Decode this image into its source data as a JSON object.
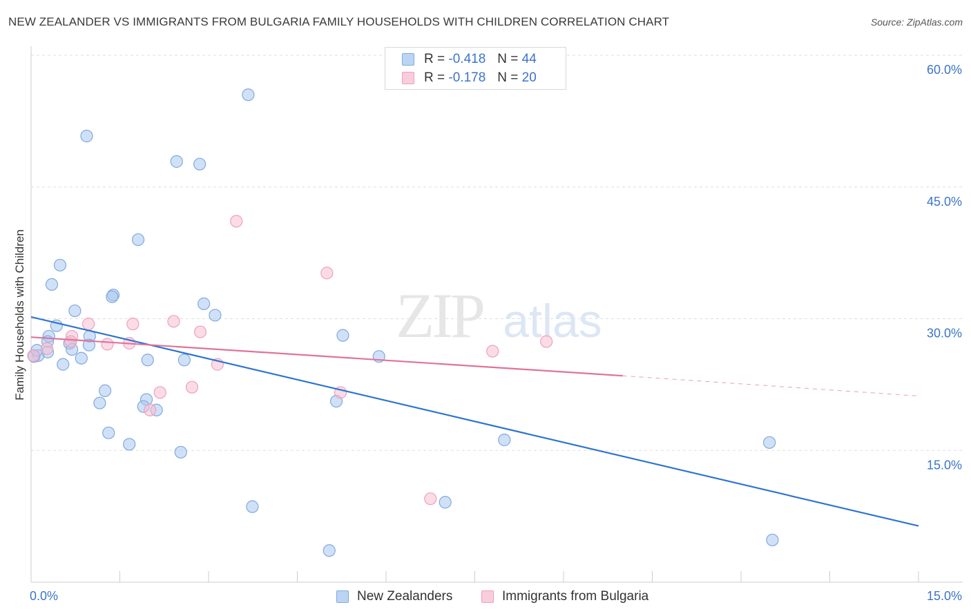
{
  "header": {
    "title": "NEW ZEALANDER VS IMMIGRANTS FROM BULGARIA FAMILY HOUSEHOLDS WITH CHILDREN CORRELATION CHART",
    "source": "Source: ZipAtlas.com"
  },
  "watermark": {
    "zip": "ZIP",
    "atlas": "atlas"
  },
  "colors": {
    "blue_fill": "#a9c8f0",
    "blue_stroke": "#7ea9e0",
    "blue_line": "#2f74d0",
    "pink_fill": "#f7bfd1",
    "pink_stroke": "#eda0b9",
    "pink_line": "#e0729a",
    "tick_label": "#3b74c9",
    "grid": "#dddddd"
  },
  "legend": {
    "rows": [
      {
        "r_label": "R =",
        "r_value": "-0.418",
        "n_label": "N =",
        "n_value": "44"
      },
      {
        "r_label": "R =",
        "r_value": "-0.178",
        "n_label": "N =",
        "n_value": "20"
      }
    ]
  },
  "bottom_legend": {
    "series_a": "New Zealanders",
    "series_b": "Immigrants from Bulgaria"
  },
  "chart_data": {
    "type": "scatter",
    "title": "NEW ZEALANDER VS IMMIGRANTS FROM BULGARIA FAMILY HOUSEHOLDS WITH CHILDREN CORRELATION CHART",
    "xlabel": "",
    "ylabel": "Family Households with Children",
    "xlim": [
      0,
      15
    ],
    "ylim": [
      0,
      60
    ],
    "x_tick_labels": [
      "0.0%",
      "15.0%"
    ],
    "y_ticks": [
      15,
      30,
      45,
      60
    ],
    "y_tick_labels": [
      "15.0%",
      "30.0%",
      "45.0%",
      "60.0%"
    ],
    "grid": true,
    "legend_position": "top-center",
    "series": [
      {
        "name": "New Zealanders",
        "points": [
          [
            3.67,
            55.5
          ],
          [
            0.94,
            50.8
          ],
          [
            2.46,
            47.9
          ],
          [
            2.85,
            47.6
          ],
          [
            1.81,
            39.0
          ],
          [
            0.49,
            36.1
          ],
          [
            0.35,
            33.9
          ],
          [
            1.39,
            32.7
          ],
          [
            1.37,
            32.5
          ],
          [
            2.92,
            31.7
          ],
          [
            0.74,
            30.9
          ],
          [
            3.11,
            30.4
          ],
          [
            0.43,
            29.2
          ],
          [
            0.3,
            28.0
          ],
          [
            0.99,
            28.0
          ],
          [
            0.28,
            27.4
          ],
          [
            0.65,
            27.2
          ],
          [
            0.98,
            27.0
          ],
          [
            0.69,
            26.5
          ],
          [
            0.28,
            26.2
          ],
          [
            0.12,
            25.8
          ],
          [
            0.05,
            25.7
          ],
          [
            0.85,
            25.5
          ],
          [
            1.97,
            25.3
          ],
          [
            2.59,
            25.3
          ],
          [
            0.54,
            24.8
          ],
          [
            5.27,
            28.1
          ],
          [
            5.88,
            25.7
          ],
          [
            1.25,
            21.8
          ],
          [
            1.16,
            20.4
          ],
          [
            1.95,
            20.8
          ],
          [
            1.9,
            20.0
          ],
          [
            2.12,
            19.6
          ],
          [
            5.16,
            20.6
          ],
          [
            1.31,
            17.0
          ],
          [
            8.0,
            16.2
          ],
          [
            1.66,
            15.7
          ],
          [
            2.53,
            14.8
          ],
          [
            12.48,
            15.9
          ],
          [
            3.74,
            8.6
          ],
          [
            7.0,
            9.1
          ],
          [
            5.04,
            3.6
          ],
          [
            12.53,
            4.8
          ],
          [
            0.1,
            26.4
          ]
        ]
      },
      {
        "name": "Immigrants from Bulgaria",
        "points": [
          [
            3.47,
            41.1
          ],
          [
            5.0,
            35.2
          ],
          [
            0.97,
            29.4
          ],
          [
            1.72,
            29.4
          ],
          [
            2.41,
            29.7
          ],
          [
            2.86,
            28.5
          ],
          [
            0.69,
            28.0
          ],
          [
            1.29,
            27.1
          ],
          [
            1.66,
            27.2
          ],
          [
            0.27,
            26.6
          ],
          [
            0.67,
            27.4
          ],
          [
            7.8,
            26.3
          ],
          [
            8.71,
            27.4
          ],
          [
            3.15,
            24.8
          ],
          [
            2.72,
            22.2
          ],
          [
            5.23,
            21.6
          ],
          [
            2.18,
            21.6
          ],
          [
            2.01,
            19.6
          ],
          [
            6.75,
            9.5
          ],
          [
            0.04,
            25.8
          ]
        ]
      }
    ],
    "trend_lines": [
      {
        "series": "New Zealanders",
        "x": [
          0,
          15
        ],
        "y": [
          30.2,
          6.4
        ]
      },
      {
        "series": "Immigrants from Bulgaria",
        "x": [
          0,
          10
        ],
        "y": [
          27.9,
          23.5
        ]
      },
      {
        "series": "Immigrants from Bulgaria",
        "x": [
          10,
          15
        ],
        "y": [
          23.5,
          21.2
        ],
        "style": "dashed"
      }
    ]
  }
}
